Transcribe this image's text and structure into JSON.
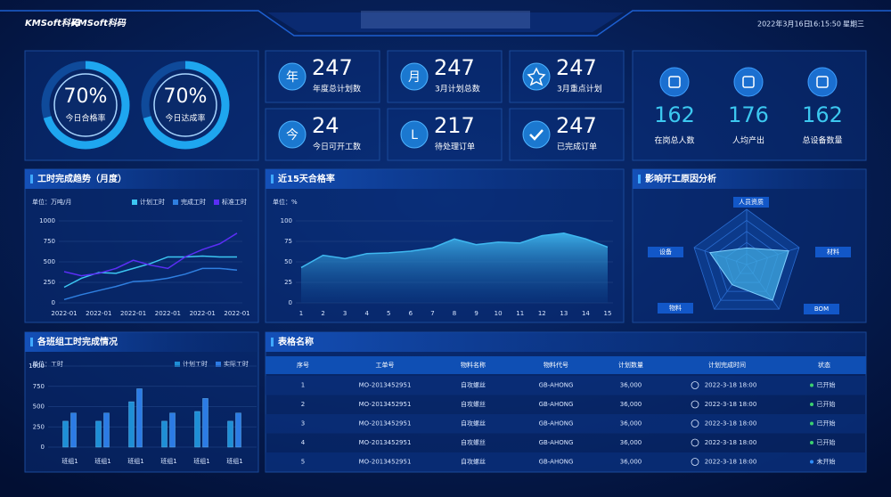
{
  "header": {
    "logos": [
      "KMSoft科码",
      "KMSoft科码"
    ],
    "date": "2022年3月16日",
    "time": "16:15:50",
    "weekday": "星期三"
  },
  "gauges": [
    {
      "value": 70,
      "label": "70%",
      "caption": "今日合格率"
    },
    {
      "value": 70,
      "label": "70%",
      "caption": "今日达成率"
    }
  ],
  "kpis": [
    {
      "icon": "年",
      "value": 247,
      "caption": "年度总计划数"
    },
    {
      "icon": "月",
      "value": 247,
      "caption": "3月计划总数"
    },
    {
      "value": 247,
      "caption": "3月重点计划"
    },
    {
      "icon": "今",
      "value": 24,
      "caption": "今日可开工数"
    },
    {
      "icon": "L",
      "value": 217,
      "caption": "待处理订单"
    },
    {
      "value": 247,
      "caption": "已完成订单"
    }
  ],
  "stats": [
    {
      "value": 162,
      "caption": "在岗总人数"
    },
    {
      "value": 176,
      "caption": "人均产出"
    },
    {
      "value": 162,
      "caption": "总设备数量"
    }
  ],
  "chart_data": [
    {
      "type": "line",
      "title": "工时完成趋势（月度）",
      "unit": "单位：万吨/月",
      "categories": [
        "2022-01",
        null,
        "2022-01",
        null,
        "2022-01",
        null,
        "2022-01",
        null,
        "2022-01",
        null,
        "2022-01"
      ],
      "series": [
        {
          "name": "计划工时",
          "color": "#3cc6f2",
          "values": [
            190,
            300,
            370,
            360,
            420,
            480,
            560,
            560,
            570,
            560,
            560
          ]
        },
        {
          "name": "完成工时",
          "color": "#2f7fe0",
          "values": [
            40,
            100,
            150,
            200,
            260,
            270,
            300,
            350,
            420,
            420,
            400
          ]
        },
        {
          "name": "标准工时",
          "color": "#5b2ef5",
          "values": [
            380,
            330,
            360,
            420,
            520,
            460,
            420,
            560,
            650,
            720,
            850
          ]
        }
      ],
      "ylim": [
        0,
        1000
      ],
      "yticks": [
        0,
        250,
        500,
        750,
        1000
      ],
      "grid": true
    },
    {
      "type": "area",
      "title": "近15天合格率",
      "unit": "单位：%",
      "categories": [
        "1",
        "2",
        "3",
        "4",
        "5",
        "6",
        "7",
        "8",
        "9",
        "10",
        "11",
        "12",
        "13",
        "14",
        "15"
      ],
      "values": [
        43,
        58,
        54,
        60,
        61,
        63,
        67,
        78,
        71,
        74,
        73,
        82,
        85,
        78,
        68
      ],
      "color": "#3fb8f0",
      "ylim": [
        0,
        100
      ],
      "yticks": [
        0,
        25,
        50,
        75,
        100
      ],
      "grid": true
    },
    {
      "type": "radar",
      "title": "影响开工原因分析",
      "categories": [
        "人员资质",
        "材料",
        "BOM",
        "物料",
        "设备"
      ],
      "values": [
        30,
        80,
        80,
        45,
        70
      ],
      "color": "#3fa9e0",
      "rlim": [
        0,
        100
      ]
    },
    {
      "type": "bar",
      "title": "各班组工时完成情况",
      "unit": "单位：工时",
      "categories": [
        "班组1",
        "班组1",
        "班组1",
        "班组1",
        "班组1",
        "班组1"
      ],
      "series": [
        {
          "name": "计划工时",
          "color": "#1e8fd6",
          "values": [
            320,
            320,
            560,
            320,
            440,
            320
          ]
        },
        {
          "name": "实际工时",
          "color": "#2c7be5",
          "values": [
            420,
            420,
            720,
            420,
            600,
            420
          ]
        }
      ],
      "ylim": [
        0,
        1000
      ],
      "yticks": [
        0,
        250,
        500,
        750,
        1000
      ],
      "grid": true
    }
  ],
  "table": {
    "title": "表格名称",
    "columns": [
      "序号",
      "工单号",
      "物料名称",
      "物料代号",
      "计划数量",
      "计划完成时间",
      "状态"
    ],
    "rows": [
      [
        1,
        "MO-2013452951",
        "自攻螺丝",
        "GB-AHONG",
        "36,000",
        "2022-3-18  18:00",
        "已开始"
      ],
      [
        2,
        "MO-2013452951",
        "自攻螺丝",
        "GB-AHONG",
        "36,000",
        "2022-3-18  18:00",
        "已开始"
      ],
      [
        3,
        "MO-2013452951",
        "自攻螺丝",
        "GB-AHONG",
        "36,000",
        "2022-3-18  18:00",
        "已开始"
      ],
      [
        4,
        "MO-2013452951",
        "自攻螺丝",
        "GB-AHONG",
        "36,000",
        "2022-3-18  18:00",
        "已开始"
      ],
      [
        5,
        "MO-2013452951",
        "自攻螺丝",
        "GB-AHONG",
        "36,000",
        "2022-3-18  18:00",
        "未开始"
      ]
    ],
    "status_colors": [
      "#3cd070",
      "#3cd070",
      "#3cd070",
      "#3cd070",
      "#2f8fff"
    ]
  }
}
